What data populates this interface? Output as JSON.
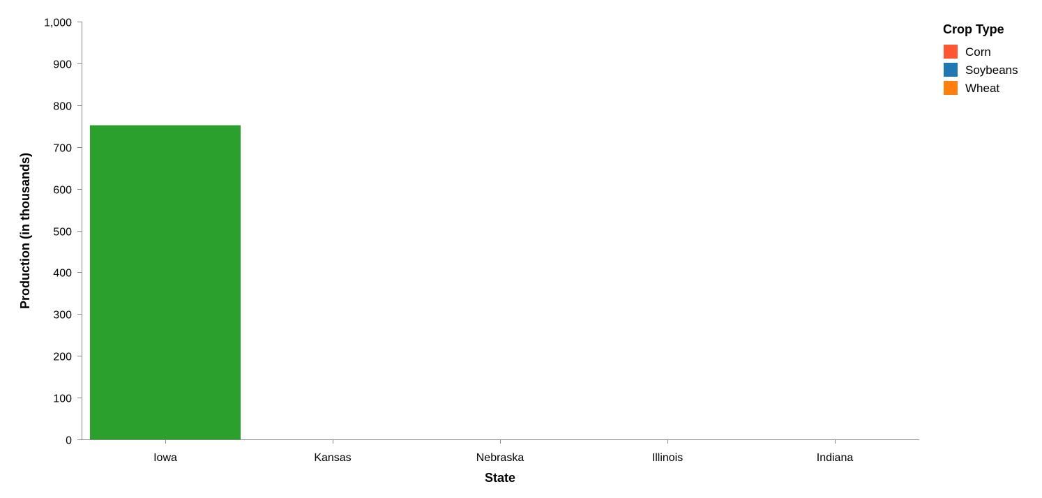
{
  "chart_data": {
    "type": "bar",
    "title": "",
    "xlabel": "State",
    "ylabel": "Production (in thousands)",
    "categories": [
      "Iowa",
      "Kansas",
      "Nebraska",
      "Illinois",
      "Indiana"
    ],
    "values": [
      752,
      0,
      0,
      0,
      0
    ],
    "bar_color": "#2ca02c",
    "ylim": [
      0,
      1000
    ],
    "yticks": [
      0,
      100,
      200,
      300,
      400,
      500,
      600,
      700,
      800,
      900,
      1000
    ],
    "ytick_labels": [
      "0",
      "100",
      "200",
      "300",
      "400",
      "500",
      "600",
      "700",
      "800",
      "900",
      "1,000"
    ],
    "grid": false,
    "legend": {
      "title": "Crop Type",
      "placement": "top-right",
      "items": [
        {
          "label": "Corn",
          "color": "#ff5733"
        },
        {
          "label": "Soybeans",
          "color": "#1f77b4"
        },
        {
          "label": "Wheat",
          "color": "#ff7f0e"
        }
      ]
    }
  }
}
